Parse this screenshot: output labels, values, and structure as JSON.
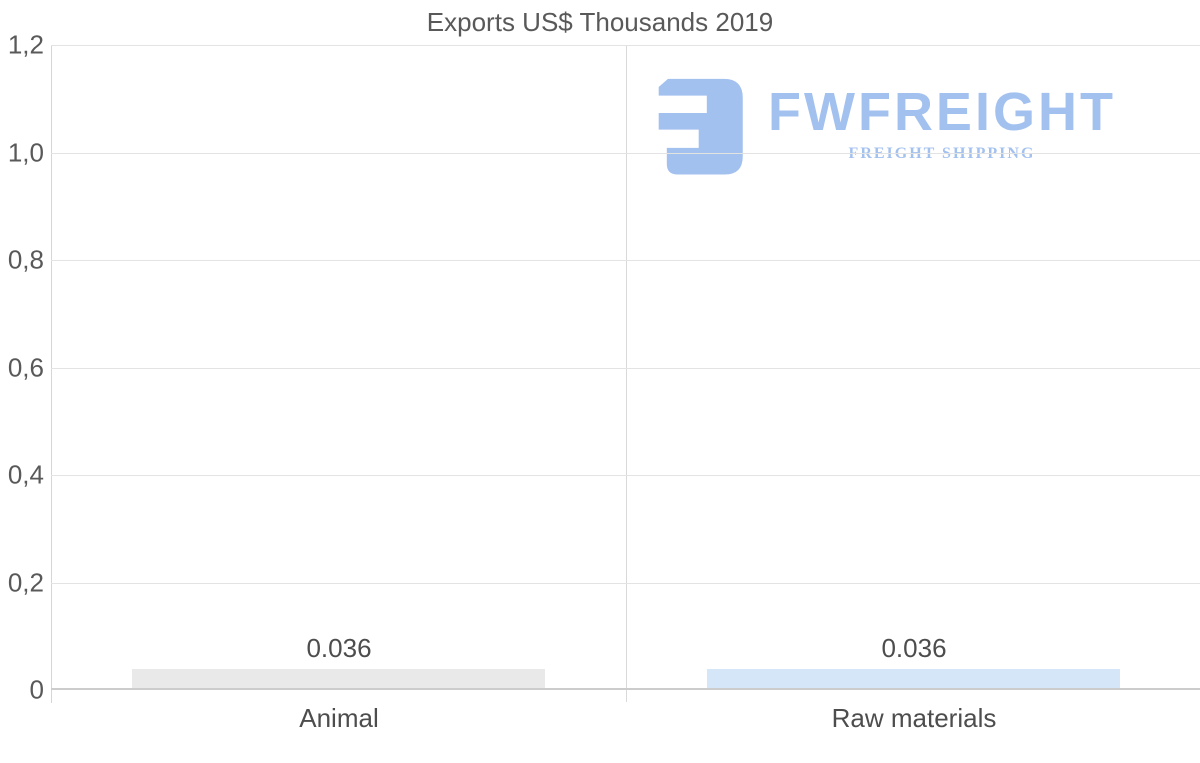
{
  "chart_data": {
    "type": "bar",
    "title": "Exports US$ Thousands 2019",
    "categories": [
      "Animal",
      "Raw materials"
    ],
    "values": [
      0.036,
      0.036
    ],
    "value_labels": [
      "0.036",
      "0.036"
    ],
    "series_colors": [
      "#e9e9e9",
      "#d5e6f8"
    ],
    "ylim": [
      0,
      1.2
    ],
    "yticks": [
      {
        "value": 1.2,
        "label": "1,2"
      },
      {
        "value": 1.0,
        "label": "1,0"
      },
      {
        "value": 0.8,
        "label": "0,8"
      },
      {
        "value": 0.6,
        "label": "0,6"
      },
      {
        "value": 0.4,
        "label": "0,4"
      },
      {
        "value": 0.2,
        "label": "0,2"
      },
      {
        "value": 0.0,
        "label": "0"
      }
    ],
    "grid": true,
    "legend": false,
    "xlabel": "",
    "ylabel": ""
  },
  "watermark": {
    "brand": "FWFREIGHT",
    "tagline": "FREIGHT SHIPPING",
    "color": "#a3c1ef"
  },
  "colors": {
    "background": "#ffffff",
    "grid": "#e3e3e3",
    "axis": "#cccccc",
    "title_text": "#595959",
    "tick_text": "#595959",
    "label_text": "#4d4d4d"
  }
}
